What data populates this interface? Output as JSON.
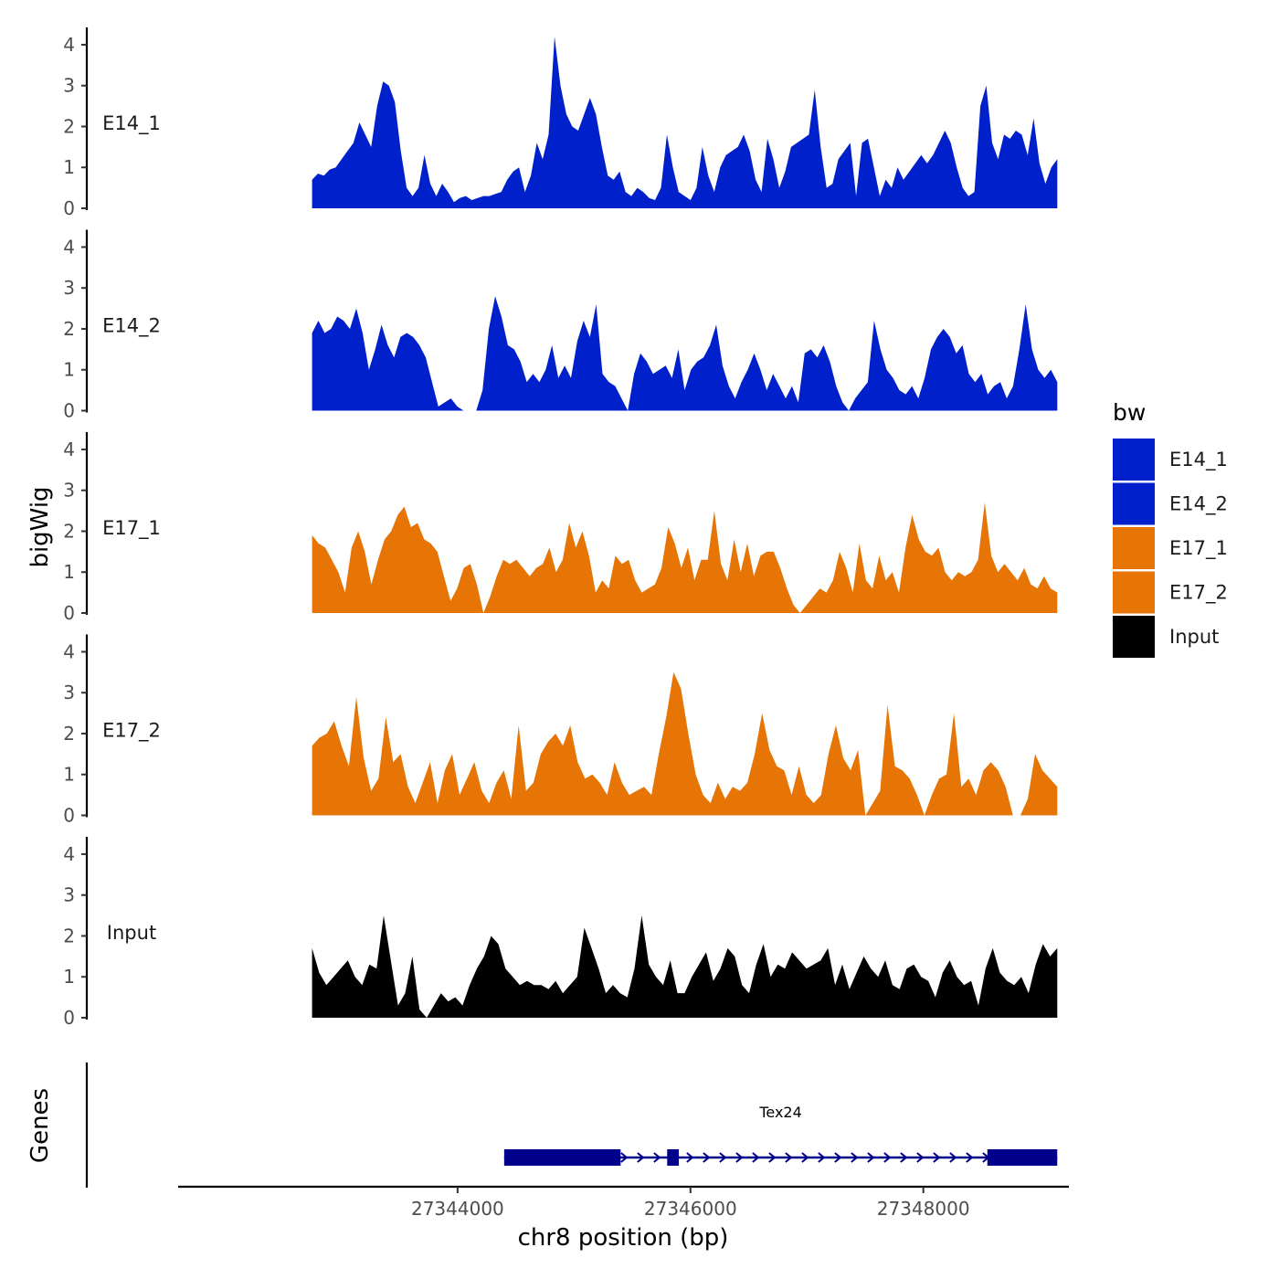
{
  "chart_data": {
    "type": "area",
    "ylabel": "bigWig",
    "xlabel": "chr8 position (bp)",
    "genes_label": "Genes",
    "x_range": [
      27341600,
      27349250
    ],
    "data_x_range": [
      27342750,
      27349150
    ],
    "ylim": [
      0,
      4.2
    ],
    "y_ticks": [
      "0",
      "1",
      "2",
      "3",
      "4"
    ],
    "x_ticks": [
      {
        "value": 27344000,
        "label": "27344000"
      },
      {
        "value": 27346000,
        "label": "27346000"
      },
      {
        "value": 27348000,
        "label": "27348000"
      }
    ],
    "legend": {
      "title": "bw",
      "items": [
        {
          "label": "E14_1",
          "color": "#0020cc"
        },
        {
          "label": "E14_2",
          "color": "#0020cc"
        },
        {
          "label": "E17_1",
          "color": "#e67505"
        },
        {
          "label": "E17_2",
          "color": "#e67505"
        },
        {
          "label": "Input",
          "color": "#000000"
        }
      ]
    },
    "tracks": [
      {
        "name": "E14_1",
        "color": "#0020cc",
        "values": [
          0.7,
          0.85,
          0.8,
          0.95,
          1.0,
          1.2,
          1.4,
          1.6,
          2.1,
          1.8,
          1.5,
          2.5,
          3.1,
          3.0,
          2.6,
          1.4,
          0.5,
          0.3,
          0.5,
          1.3,
          0.6,
          0.3,
          0.6,
          0.4,
          0.15,
          0.25,
          0.3,
          0.2,
          0.25,
          0.3,
          0.3,
          0.35,
          0.4,
          0.7,
          0.9,
          1.0,
          0.4,
          0.8,
          1.6,
          1.2,
          1.8,
          4.2,
          3.0,
          2.3,
          2.0,
          1.9,
          2.3,
          2.7,
          2.3,
          1.5,
          0.8,
          0.7,
          0.9,
          0.4,
          0.3,
          0.5,
          0.4,
          0.25,
          0.2,
          0.5,
          1.8,
          1.0,
          0.4,
          0.3,
          0.2,
          0.5,
          1.5,
          0.8,
          0.4,
          1.0,
          1.3,
          1.4,
          1.5,
          1.8,
          1.4,
          0.7,
          0.4,
          1.7,
          1.2,
          0.5,
          0.9,
          1.5,
          1.6,
          1.7,
          1.8,
          2.9,
          1.5,
          0.5,
          0.6,
          1.2,
          1.4,
          1.6,
          0.3,
          1.6,
          1.7,
          1.0,
          0.3,
          0.7,
          0.5,
          1.0,
          0.7,
          0.9,
          1.1,
          1.3,
          1.1,
          1.3,
          1.6,
          1.9,
          1.6,
          1.0,
          0.5,
          0.3,
          0.4,
          2.5,
          3.0,
          1.6,
          1.2,
          1.8,
          1.7,
          1.9,
          1.8,
          1.3,
          2.2,
          1.1,
          0.6,
          1.0,
          1.2
        ]
      },
      {
        "name": "E14_2",
        "color": "#0020cc",
        "values": [
          1.9,
          2.2,
          1.9,
          2.0,
          2.3,
          2.2,
          2.0,
          2.5,
          1.9,
          1.0,
          1.5,
          2.1,
          1.6,
          1.3,
          1.8,
          1.9,
          1.8,
          1.6,
          1.3,
          0.7,
          0.1,
          0.2,
          0.3,
          0.1,
          0.0,
          0.0,
          0.0,
          0.5,
          2.0,
          2.8,
          2.3,
          1.6,
          1.5,
          1.2,
          0.7,
          0.9,
          0.7,
          1.0,
          1.6,
          0.8,
          1.1,
          0.8,
          1.7,
          2.2,
          1.8,
          2.6,
          0.9,
          0.7,
          0.6,
          0.3,
          0.0,
          0.9,
          1.4,
          1.2,
          0.9,
          1.0,
          1.1,
          0.8,
          1.5,
          0.5,
          1.0,
          1.2,
          1.3,
          1.6,
          2.1,
          1.1,
          0.6,
          0.3,
          0.7,
          1.0,
          1.4,
          1.0,
          0.5,
          0.9,
          0.6,
          0.3,
          0.6,
          0.2,
          1.4,
          1.5,
          1.3,
          1.6,
          1.2,
          0.6,
          0.2,
          0.0,
          0.3,
          0.5,
          0.7,
          2.2,
          1.5,
          1.0,
          0.8,
          0.5,
          0.4,
          0.6,
          0.3,
          0.8,
          1.5,
          1.8,
          2.0,
          1.8,
          1.4,
          1.6,
          0.9,
          0.7,
          0.9,
          0.4,
          0.6,
          0.7,
          0.3,
          0.6,
          1.5,
          2.6,
          1.5,
          1.0,
          0.8,
          1.0,
          0.7
        ]
      },
      {
        "name": "E17_1",
        "color": "#e67505",
        "values": [
          1.9,
          1.7,
          1.6,
          1.3,
          1.0,
          0.5,
          1.6,
          2.0,
          1.5,
          0.7,
          1.3,
          1.8,
          2.0,
          2.4,
          2.6,
          2.1,
          2.2,
          1.8,
          1.7,
          1.5,
          0.9,
          0.3,
          0.6,
          1.1,
          1.2,
          0.7,
          0.0,
          0.4,
          0.9,
          1.3,
          1.2,
          1.3,
          1.1,
          0.9,
          1.1,
          1.2,
          1.6,
          1.0,
          1.3,
          2.2,
          1.6,
          2.0,
          1.4,
          0.5,
          0.8,
          0.6,
          1.4,
          1.2,
          1.3,
          0.8,
          0.5,
          0.6,
          0.7,
          1.1,
          2.1,
          1.7,
          1.1,
          1.6,
          0.8,
          1.3,
          1.3,
          2.5,
          1.2,
          0.8,
          1.8,
          1.0,
          1.7,
          0.9,
          1.4,
          1.5,
          1.5,
          1.1,
          0.6,
          0.2,
          0.0,
          0.2,
          0.4,
          0.6,
          0.5,
          0.8,
          1.5,
          1.1,
          0.5,
          1.7,
          0.8,
          0.6,
          1.4,
          0.8,
          1.0,
          0.5,
          1.6,
          2.4,
          1.8,
          1.5,
          1.4,
          1.6,
          1.0,
          0.8,
          1.0,
          0.9,
          1.0,
          1.3,
          2.7,
          1.4,
          1.0,
          1.2,
          1.0,
          0.8,
          1.1,
          0.7,
          0.6,
          0.9,
          0.6,
          0.5
        ]
      },
      {
        "name": "E17_2",
        "color": "#e67505",
        "values": [
          1.7,
          1.9,
          2.0,
          2.3,
          1.7,
          1.2,
          2.9,
          1.4,
          0.6,
          0.9,
          2.4,
          1.3,
          1.5,
          0.7,
          0.3,
          0.8,
          1.3,
          0.3,
          1.1,
          1.5,
          0.5,
          0.9,
          1.3,
          0.6,
          0.3,
          0.8,
          1.1,
          0.4,
          2.2,
          0.6,
          0.8,
          1.5,
          1.8,
          2.0,
          1.7,
          2.2,
          1.3,
          0.9,
          1.0,
          0.8,
          0.5,
          1.3,
          0.8,
          0.5,
          0.6,
          0.7,
          0.5,
          1.5,
          2.4,
          3.5,
          3.1,
          2.0,
          1.0,
          0.5,
          0.3,
          0.8,
          0.4,
          0.7,
          0.6,
          0.8,
          1.5,
          2.5,
          1.6,
          1.2,
          1.1,
          0.5,
          1.2,
          0.5,
          0.3,
          0.5,
          1.5,
          2.2,
          1.4,
          1.1,
          1.6,
          0.0,
          0.3,
          0.6,
          2.7,
          1.2,
          1.1,
          0.9,
          0.5,
          0.0,
          0.5,
          0.9,
          1.0,
          2.5,
          0.7,
          0.9,
          0.5,
          1.1,
          1.3,
          1.1,
          0.7,
          0.0,
          0.0,
          0.4,
          1.5,
          1.1,
          0.9,
          0.7
        ]
      },
      {
        "name": "Input",
        "color": "#000000",
        "values": [
          1.7,
          1.1,
          0.8,
          1.0,
          1.2,
          1.4,
          1.0,
          0.8,
          1.3,
          1.2,
          2.5,
          1.4,
          0.3,
          0.6,
          1.5,
          0.2,
          0.0,
          0.3,
          0.6,
          0.4,
          0.5,
          0.3,
          0.8,
          1.2,
          1.5,
          2.0,
          1.8,
          1.2,
          1.0,
          0.8,
          0.9,
          0.8,
          0.8,
          0.7,
          0.9,
          0.6,
          0.8,
          1.0,
          2.2,
          1.7,
          1.2,
          0.6,
          0.8,
          0.6,
          0.5,
          1.2,
          2.5,
          1.3,
          1.0,
          0.8,
          1.4,
          0.6,
          0.6,
          1.0,
          1.3,
          1.6,
          0.9,
          1.2,
          1.7,
          1.5,
          0.8,
          0.6,
          1.3,
          1.8,
          1.0,
          1.3,
          1.2,
          1.6,
          1.4,
          1.2,
          1.3,
          1.4,
          1.7,
          0.8,
          1.3,
          0.7,
          1.1,
          1.5,
          1.2,
          1.0,
          1.4,
          0.8,
          0.7,
          1.2,
          1.3,
          1.0,
          0.9,
          0.5,
          1.1,
          1.4,
          1.0,
          0.8,
          0.9,
          0.3,
          1.2,
          1.7,
          1.1,
          0.9,
          0.8,
          1.0,
          0.6,
          1.3,
          1.8,
          1.5,
          1.7
        ]
      }
    ],
    "gene": {
      "name": "Tex24",
      "strand": "+",
      "start": 27344400,
      "end": 27349150,
      "exons": [
        [
          27344400,
          27345400
        ],
        [
          27345800,
          27345900
        ],
        [
          27348550,
          27349150
        ]
      ]
    }
  }
}
